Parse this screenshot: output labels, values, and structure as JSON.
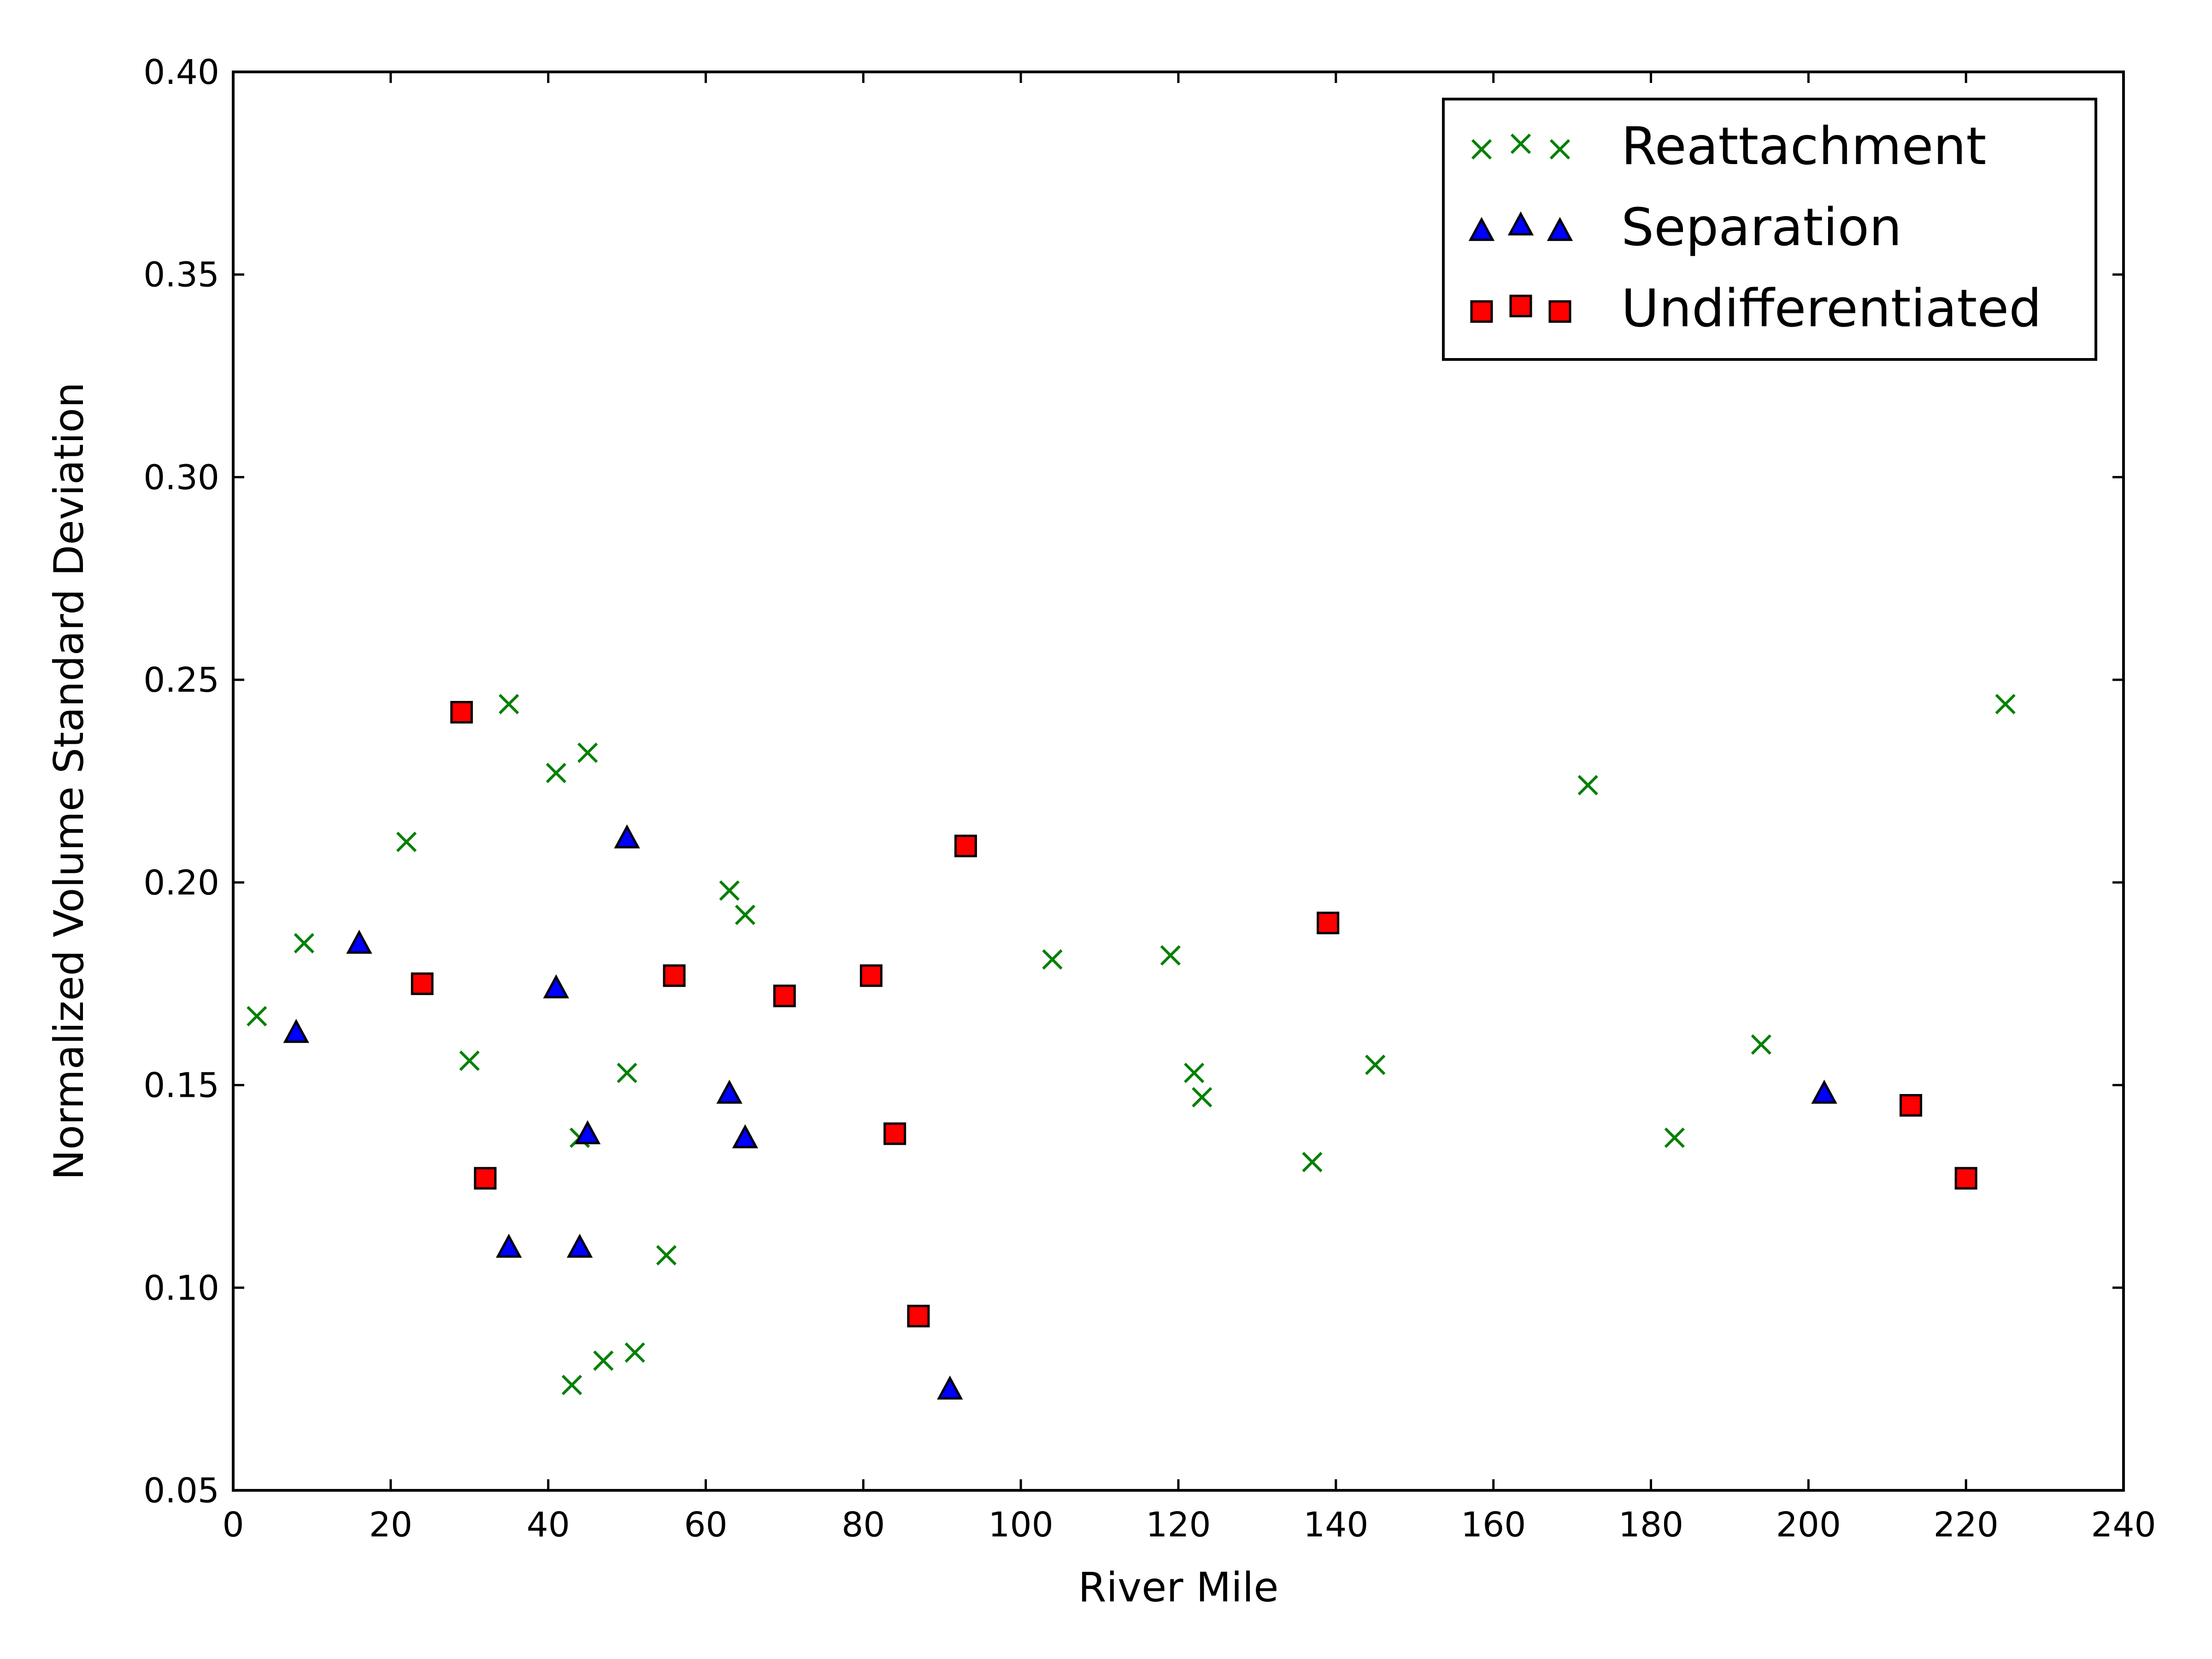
{
  "chart_data": {
    "type": "scatter",
    "title": "",
    "xlabel": "River Mile",
    "ylabel": "Normalized Volume Standard Deviation",
    "xlim": [
      0,
      240
    ],
    "ylim": [
      0.05,
      0.4
    ],
    "xticks": [
      0,
      20,
      40,
      60,
      80,
      100,
      120,
      140,
      160,
      180,
      200,
      220,
      240
    ],
    "yticks": [
      0.05,
      0.1,
      0.15,
      0.2,
      0.25,
      0.3,
      0.35,
      0.4
    ],
    "xtick_labels": [
      "0",
      "20",
      "40",
      "60",
      "80",
      "100",
      "120",
      "140",
      "160",
      "180",
      "200",
      "220",
      "240"
    ],
    "ytick_labels": [
      "0.05",
      "0.10",
      "0.15",
      "0.20",
      "0.25",
      "0.30",
      "0.35",
      "0.40"
    ],
    "grid": false,
    "legend_position": "top-right",
    "series": [
      {
        "name": "Reattachment",
        "marker": "x",
        "color": "#008000",
        "points": [
          [
            3,
            0.167
          ],
          [
            9,
            0.185
          ],
          [
            22,
            0.21
          ],
          [
            30,
            0.156
          ],
          [
            35,
            0.244
          ],
          [
            41,
            0.227
          ],
          [
            43,
            0.076
          ],
          [
            44,
            0.137
          ],
          [
            45,
            0.232
          ],
          [
            47,
            0.082
          ],
          [
            50,
            0.153
          ],
          [
            51,
            0.084
          ],
          [
            55,
            0.108
          ],
          [
            63,
            0.198
          ],
          [
            65,
            0.192
          ],
          [
            104,
            0.181
          ],
          [
            119,
            0.182
          ],
          [
            122,
            0.153
          ],
          [
            123,
            0.147
          ],
          [
            137,
            0.131
          ],
          [
            145,
            0.155
          ],
          [
            172,
            0.224
          ],
          [
            183,
            0.137
          ],
          [
            194,
            0.16
          ],
          [
            225,
            0.244
          ]
        ]
      },
      {
        "name": "Separation",
        "marker": "triangle",
        "color": "#0000ff",
        "points": [
          [
            8,
            0.163
          ],
          [
            16,
            0.185
          ],
          [
            35,
            0.11
          ],
          [
            41,
            0.174
          ],
          [
            44,
            0.11
          ],
          [
            45,
            0.138
          ],
          [
            50,
            0.211
          ],
          [
            63,
            0.148
          ],
          [
            65,
            0.137
          ],
          [
            91,
            0.075
          ],
          [
            202,
            0.148
          ]
        ]
      },
      {
        "name": "Undifferentiated",
        "marker": "square",
        "color": "#ff0000",
        "points": [
          [
            24,
            0.175
          ],
          [
            29,
            0.242
          ],
          [
            32,
            0.127
          ],
          [
            56,
            0.177
          ],
          [
            70,
            0.172
          ],
          [
            81,
            0.177
          ],
          [
            84,
            0.138
          ],
          [
            87,
            0.093
          ],
          [
            93,
            0.209
          ],
          [
            139,
            0.19
          ],
          [
            213,
            0.145
          ],
          [
            220,
            0.127
          ]
        ]
      }
    ]
  }
}
